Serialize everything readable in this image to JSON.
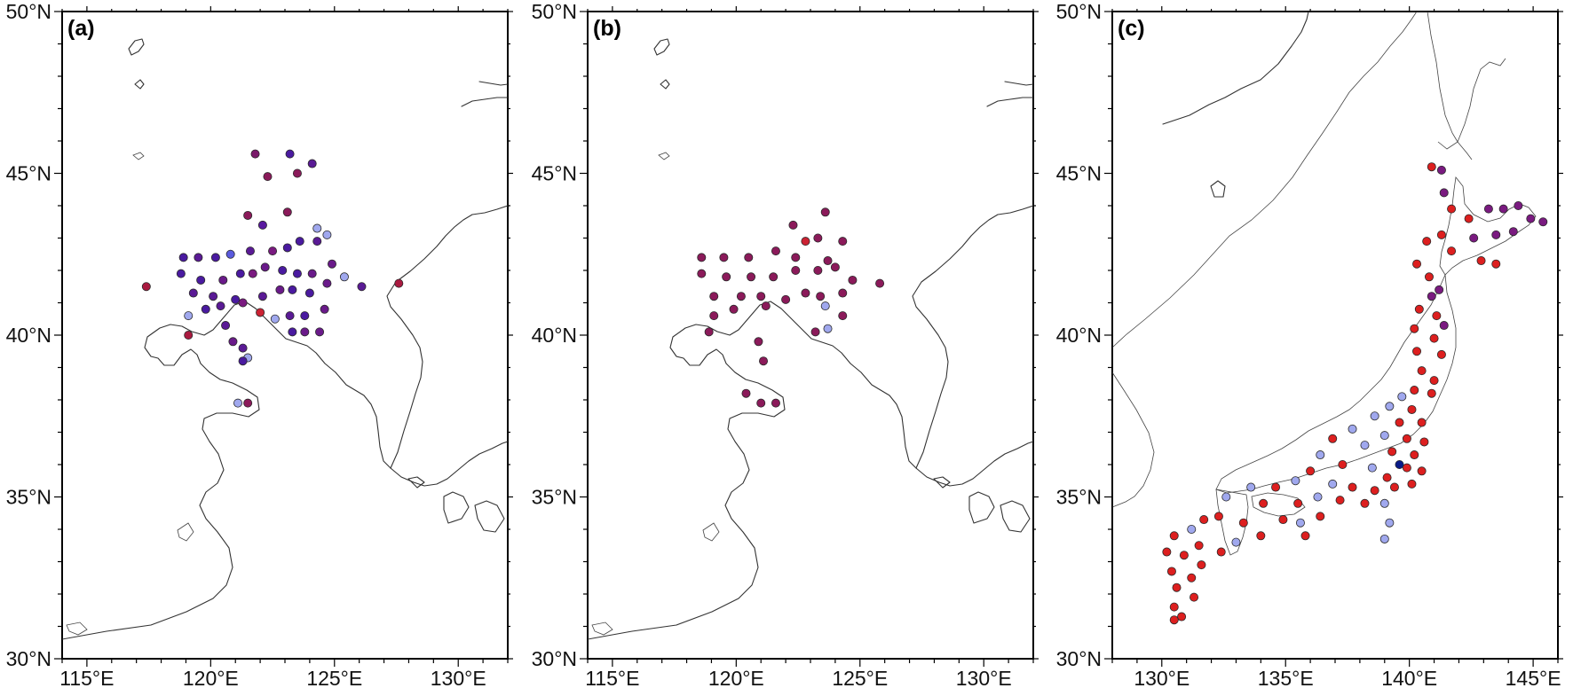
{
  "panels": [
    {
      "label": "(a)",
      "lon_range": [
        114,
        132
      ],
      "lat_range": [
        30,
        50
      ],
      "x_ticks": [
        "115°E",
        "120°E",
        "125°E",
        "130°E"
      ],
      "x_tick_values": [
        115,
        120,
        125,
        130
      ],
      "y_ticks": [
        "30°N",
        "35°N",
        "40°N",
        "45°N",
        "50°N"
      ],
      "y_tick_values": [
        30,
        35,
        40,
        45,
        50
      ],
      "stations": [
        [
          121.8,
          45.6,
          "#7a1a6a"
        ],
        [
          122.3,
          44.9,
          "#8b1a5a"
        ],
        [
          123.2,
          45.6,
          "#4a1aa0"
        ],
        [
          123.5,
          45.0,
          "#8b1a5a"
        ],
        [
          124.1,
          45.3,
          "#5a1a95"
        ],
        [
          121.5,
          43.7,
          "#8b1a5a"
        ],
        [
          122.1,
          43.4,
          "#5a1aa0"
        ],
        [
          123.1,
          43.8,
          "#8b1a5a"
        ],
        [
          124.3,
          43.3,
          "#a0a8ee"
        ],
        [
          124.7,
          43.1,
          "#a0a8ee"
        ],
        [
          118.9,
          42.4,
          "#4a1aa0"
        ],
        [
          119.5,
          42.4,
          "#5a1a95"
        ],
        [
          120.2,
          42.4,
          "#4a1aa0"
        ],
        [
          120.8,
          42.5,
          "#5a5add"
        ],
        [
          121.6,
          42.6,
          "#5a1a95"
        ],
        [
          122.5,
          42.6,
          "#7a1a80"
        ],
        [
          123.1,
          42.7,
          "#4a1aa0"
        ],
        [
          123.6,
          42.9,
          "#4a1aa0"
        ],
        [
          124.3,
          42.9,
          "#5a1a95"
        ],
        [
          124.9,
          42.2,
          "#6a1a8a"
        ],
        [
          117.4,
          41.5,
          "#aa1a40"
        ],
        [
          118.8,
          41.9,
          "#4a1aa0"
        ],
        [
          119.6,
          41.7,
          "#4a1aa0"
        ],
        [
          120.5,
          41.7,
          "#6a1a8a"
        ],
        [
          121.2,
          41.9,
          "#4a1aa0"
        ],
        [
          121.7,
          41.9,
          "#7a1a80"
        ],
        [
          122.2,
          42.1,
          "#6a1a8a"
        ],
        [
          122.9,
          42.0,
          "#4a1aa0"
        ],
        [
          123.5,
          41.9,
          "#4a1aa0"
        ],
        [
          124.1,
          41.9,
          "#6a1a8a"
        ],
        [
          125.4,
          41.8,
          "#a0a8ee"
        ],
        [
          126.1,
          41.5,
          "#5a1a95"
        ],
        [
          127.6,
          41.6,
          "#aa1a40"
        ],
        [
          119.3,
          41.3,
          "#5a1a95"
        ],
        [
          120.1,
          41.2,
          "#5a1a95"
        ],
        [
          121.0,
          41.1,
          "#4a1aa0"
        ],
        [
          122.1,
          41.2,
          "#5a1a95"
        ],
        [
          122.8,
          41.4,
          "#6a1a8a"
        ],
        [
          123.3,
          41.4,
          "#4a1aa0"
        ],
        [
          124.0,
          41.3,
          "#4a1aa0"
        ],
        [
          124.7,
          41.6,
          "#6a1a8a"
        ],
        [
          119.1,
          40.6,
          "#a0a8ee"
        ],
        [
          119.8,
          40.8,
          "#4a1aa0"
        ],
        [
          120.4,
          40.9,
          "#5a1a95"
        ],
        [
          121.3,
          41.0,
          "#7a1a80"
        ],
        [
          122.0,
          40.7,
          "#cc2233"
        ],
        [
          122.6,
          40.5,
          "#a0a8ee"
        ],
        [
          123.2,
          40.6,
          "#5a1a95"
        ],
        [
          123.8,
          40.6,
          "#4a1aa0"
        ],
        [
          124.6,
          40.8,
          "#6a1a8a"
        ],
        [
          119.1,
          40.0,
          "#aa1a40"
        ],
        [
          120.6,
          40.3,
          "#5a1a95"
        ],
        [
          123.3,
          40.1,
          "#4a1aa0"
        ],
        [
          123.8,
          40.1,
          "#6a1a8a"
        ],
        [
          124.4,
          40.1,
          "#6a1a8a"
        ],
        [
          120.9,
          39.8,
          "#6a1a8a"
        ],
        [
          121.3,
          39.6,
          "#5a1a95"
        ],
        [
          121.5,
          39.3,
          "#a0a8ee"
        ],
        [
          121.3,
          39.2,
          "#4a1aa0"
        ],
        [
          121.1,
          37.9,
          "#a0a8ee"
        ],
        [
          121.5,
          37.9,
          "#8b1a5a"
        ]
      ]
    },
    {
      "label": "(b)",
      "lon_range": [
        114,
        132
      ],
      "lat_range": [
        30,
        50
      ],
      "x_ticks": [
        "115°E",
        "120°E",
        "125°E",
        "130°E"
      ],
      "x_tick_values": [
        115,
        120,
        125,
        130
      ],
      "y_ticks": [
        "30°N",
        "35°N",
        "40°N",
        "45°N",
        "50°N"
      ],
      "y_tick_values": [
        30,
        35,
        40,
        45,
        50
      ],
      "stations": [
        [
          122.3,
          43.4,
          "#8b1a5a"
        ],
        [
          123.6,
          43.8,
          "#8b1a5a"
        ],
        [
          122.8,
          42.9,
          "#cc2233"
        ],
        [
          123.3,
          43.0,
          "#8b1a5a"
        ],
        [
          124.3,
          42.9,
          "#8b1a5a"
        ],
        [
          118.6,
          42.4,
          "#8b1a5a"
        ],
        [
          119.5,
          42.4,
          "#8b1a5a"
        ],
        [
          120.5,
          42.4,
          "#8b1a5a"
        ],
        [
          121.6,
          42.6,
          "#8b1a5a"
        ],
        [
          122.4,
          42.4,
          "#8b1a5a"
        ],
        [
          123.7,
          42.3,
          "#8b1a5a"
        ],
        [
          118.6,
          41.9,
          "#8b1a5a"
        ],
        [
          119.6,
          41.8,
          "#8b1a5a"
        ],
        [
          120.6,
          41.8,
          "#8b1a5a"
        ],
        [
          121.5,
          41.8,
          "#8b1a5a"
        ],
        [
          122.4,
          42.0,
          "#8b1a5a"
        ],
        [
          123.3,
          42.0,
          "#8b1a5a"
        ],
        [
          124.0,
          42.1,
          "#8b1a5a"
        ],
        [
          124.7,
          41.7,
          "#8b1a5a"
        ],
        [
          125.8,
          41.6,
          "#8b1a5a"
        ],
        [
          119.1,
          41.2,
          "#8b1a5a"
        ],
        [
          120.2,
          41.2,
          "#8b1a5a"
        ],
        [
          121.0,
          41.2,
          "#8b1a5a"
        ],
        [
          122.0,
          41.1,
          "#8b1a5a"
        ],
        [
          122.8,
          41.3,
          "#8b1a5a"
        ],
        [
          123.4,
          41.2,
          "#8b1a5a"
        ],
        [
          124.3,
          41.3,
          "#8b1a5a"
        ],
        [
          119.1,
          40.6,
          "#8b1a5a"
        ],
        [
          119.9,
          40.8,
          "#8b1a5a"
        ],
        [
          121.2,
          40.9,
          "#8b1a5a"
        ],
        [
          123.6,
          40.9,
          "#a0a8ee"
        ],
        [
          124.3,
          40.6,
          "#8b1a5a"
        ],
        [
          118.9,
          40.1,
          "#8b1a5a"
        ],
        [
          123.2,
          40.1,
          "#8b1a5a"
        ],
        [
          123.7,
          40.2,
          "#a0a8ee"
        ],
        [
          120.9,
          39.8,
          "#8b1a5a"
        ],
        [
          121.1,
          39.2,
          "#8b1a5a"
        ],
        [
          120.4,
          38.2,
          "#8b1a5a"
        ],
        [
          121.0,
          37.9,
          "#8b1a5a"
        ],
        [
          121.6,
          37.9,
          "#8b1a5a"
        ]
      ]
    },
    {
      "label": "(c)",
      "lon_range": [
        128,
        146
      ],
      "lat_range": [
        30,
        50
      ],
      "x_ticks": [
        "130°E",
        "135°E",
        "140°E",
        "145°E"
      ],
      "x_tick_values": [
        130,
        135,
        140,
        145
      ],
      "y_ticks": [
        "30°N",
        "35°N",
        "40°N",
        "45°N",
        "50°N"
      ],
      "y_tick_values": [
        30,
        35,
        40,
        45,
        50
      ],
      "stations": [
        [
          140.9,
          45.2,
          "#dd1f1f"
        ],
        [
          141.3,
          45.1,
          "#7a1a80"
        ],
        [
          141.4,
          44.4,
          "#7a1a80"
        ],
        [
          141.7,
          43.9,
          "#dd1f1f"
        ],
        [
          142.4,
          43.6,
          "#dd1f1f"
        ],
        [
          143.2,
          43.9,
          "#7a1a80"
        ],
        [
          143.8,
          43.9,
          "#7a1a80"
        ],
        [
          144.4,
          44.0,
          "#7a1a80"
        ],
        [
          144.9,
          43.6,
          "#7a1a80"
        ],
        [
          145.4,
          43.5,
          "#7a1a80"
        ],
        [
          144.2,
          43.2,
          "#7a1a80"
        ],
        [
          143.5,
          43.1,
          "#7a1a80"
        ],
        [
          142.6,
          43.0,
          "#7a1a80"
        ],
        [
          141.3,
          43.1,
          "#dd1f1f"
        ],
        [
          140.7,
          42.9,
          "#dd1f1f"
        ],
        [
          141.7,
          42.6,
          "#dd1f1f"
        ],
        [
          142.9,
          42.3,
          "#dd1f1f"
        ],
        [
          143.5,
          42.2,
          "#dd1f1f"
        ],
        [
          140.3,
          42.2,
          "#dd1f1f"
        ],
        [
          140.8,
          41.8,
          "#dd1f1f"
        ],
        [
          141.2,
          41.4,
          "#7a1a80"
        ],
        [
          140.9,
          41.2,
          "#7a1a80"
        ],
        [
          140.4,
          40.8,
          "#dd1f1f"
        ],
        [
          141.1,
          40.6,
          "#dd1f1f"
        ],
        [
          141.4,
          40.3,
          "#7a1a80"
        ],
        [
          140.2,
          40.2,
          "#dd1f1f"
        ],
        [
          141.0,
          39.9,
          "#dd1f1f"
        ],
        [
          140.3,
          39.5,
          "#dd1f1f"
        ],
        [
          141.3,
          39.4,
          "#dd1f1f"
        ],
        [
          140.5,
          38.9,
          "#dd1f1f"
        ],
        [
          141.0,
          38.6,
          "#dd1f1f"
        ],
        [
          140.2,
          38.3,
          "#dd1f1f"
        ],
        [
          139.7,
          38.1,
          "#a0a8ee"
        ],
        [
          140.9,
          38.2,
          "#dd1f1f"
        ],
        [
          139.2,
          37.8,
          "#a0a8ee"
        ],
        [
          140.1,
          37.7,
          "#dd1f1f"
        ],
        [
          138.6,
          37.5,
          "#a0a8ee"
        ],
        [
          139.6,
          37.3,
          "#dd1f1f"
        ],
        [
          140.5,
          37.3,
          "#dd1f1f"
        ],
        [
          137.7,
          37.1,
          "#a0a8ee"
        ],
        [
          139.0,
          36.9,
          "#a0a8ee"
        ],
        [
          139.9,
          36.8,
          "#dd1f1f"
        ],
        [
          140.6,
          36.7,
          "#dd1f1f"
        ],
        [
          136.9,
          36.8,
          "#dd1f1f"
        ],
        [
          138.2,
          36.6,
          "#a0a8ee"
        ],
        [
          139.3,
          36.4,
          "#dd1f1f"
        ],
        [
          140.2,
          36.3,
          "#dd1f1f"
        ],
        [
          139.6,
          36.0,
          "#0a1a88"
        ],
        [
          139.9,
          35.9,
          "#dd1f1f"
        ],
        [
          140.5,
          35.8,
          "#dd1f1f"
        ],
        [
          136.4,
          36.3,
          "#a0a8ee"
        ],
        [
          137.3,
          36.0,
          "#dd1f1f"
        ],
        [
          138.5,
          35.9,
          "#a0a8ee"
        ],
        [
          139.1,
          35.6,
          "#dd1f1f"
        ],
        [
          140.1,
          35.4,
          "#dd1f1f"
        ],
        [
          136.0,
          35.8,
          "#dd1f1f"
        ],
        [
          136.9,
          35.4,
          "#a0a8ee"
        ],
        [
          137.7,
          35.3,
          "#dd1f1f"
        ],
        [
          138.6,
          35.2,
          "#dd1f1f"
        ],
        [
          139.4,
          35.3,
          "#dd1f1f"
        ],
        [
          135.4,
          35.5,
          "#a0a8ee"
        ],
        [
          136.3,
          35.0,
          "#a0a8ee"
        ],
        [
          137.2,
          34.9,
          "#dd1f1f"
        ],
        [
          138.2,
          34.8,
          "#dd1f1f"
        ],
        [
          139.0,
          34.8,
          "#a0a8ee"
        ],
        [
          134.6,
          35.3,
          "#dd1f1f"
        ],
        [
          135.5,
          34.8,
          "#dd1f1f"
        ],
        [
          136.4,
          34.4,
          "#dd1f1f"
        ],
        [
          139.2,
          34.2,
          "#a0a8ee"
        ],
        [
          139.0,
          33.7,
          "#a0a8ee"
        ],
        [
          133.6,
          35.3,
          "#a0a8ee"
        ],
        [
          134.1,
          34.8,
          "#dd1f1f"
        ],
        [
          134.9,
          34.3,
          "#dd1f1f"
        ],
        [
          135.6,
          34.2,
          "#a0a8ee"
        ],
        [
          135.8,
          33.8,
          "#dd1f1f"
        ],
        [
          132.6,
          35.0,
          "#a0a8ee"
        ],
        [
          132.3,
          34.4,
          "#dd1f1f"
        ],
        [
          133.3,
          34.2,
          "#dd1f1f"
        ],
        [
          134.0,
          33.8,
          "#dd1f1f"
        ],
        [
          133.0,
          33.6,
          "#a0a8ee"
        ],
        [
          131.7,
          34.3,
          "#dd1f1f"
        ],
        [
          131.2,
          34.0,
          "#a0a8ee"
        ],
        [
          130.5,
          33.8,
          "#dd1f1f"
        ],
        [
          131.5,
          33.5,
          "#dd1f1f"
        ],
        [
          132.4,
          33.3,
          "#dd1f1f"
        ],
        [
          130.2,
          33.3,
          "#dd1f1f"
        ],
        [
          130.9,
          33.2,
          "#dd1f1f"
        ],
        [
          131.6,
          32.9,
          "#dd1f1f"
        ],
        [
          130.4,
          32.7,
          "#dd1f1f"
        ],
        [
          131.2,
          32.5,
          "#dd1f1f"
        ],
        [
          130.6,
          32.2,
          "#dd1f1f"
        ],
        [
          131.3,
          31.9,
          "#dd1f1f"
        ],
        [
          130.5,
          31.6,
          "#dd1f1f"
        ],
        [
          130.8,
          31.3,
          "#dd1f1f"
        ],
        [
          130.5,
          31.2,
          "#dd1f1f"
        ]
      ]
    }
  ]
}
